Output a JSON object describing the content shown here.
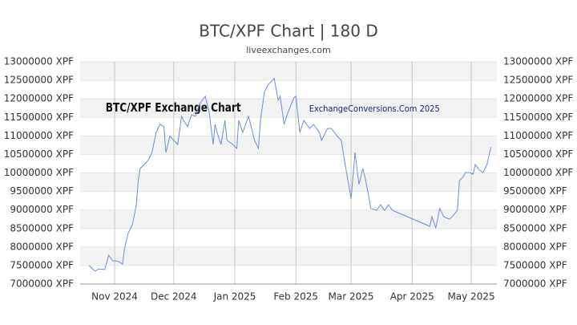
{
  "chart_data": {
    "type": "line",
    "title": "BTC/XPF Chart | 180 D",
    "subtitle": "liveexchanges.com",
    "annotations": [
      "BTC/XPF Exchange Chart",
      "ExchangeConversions.Com 2025"
    ],
    "x": [
      -13,
      -10,
      -8,
      -5,
      -3,
      -1,
      2,
      4,
      5,
      7,
      9,
      11,
      12,
      13,
      15,
      17,
      19,
      21,
      23,
      25,
      26,
      28,
      30,
      32,
      34,
      35,
      37,
      39,
      41,
      43,
      46,
      48,
      50,
      51,
      52,
      54,
      56,
      57,
      60,
      62,
      63,
      65,
      68,
      71,
      73,
      74,
      76,
      78,
      81,
      83,
      84,
      86,
      88,
      91,
      92,
      94,
      96,
      99,
      101,
      104,
      105,
      108,
      110,
      113,
      115,
      117,
      120,
      121,
      122,
      124,
      126,
      127,
      129,
      130,
      133,
      135,
      137,
      139,
      141,
      160,
      161,
      163,
      165,
      166,
      167,
      170,
      172,
      174,
      175,
      177,
      178,
      180,
      182,
      183,
      185,
      187,
      189,
      191
    ],
    "series": [
      {
        "name": "BTC/XPF",
        "color": "#6a8fd8",
        "values": [
          7500000,
          7350000,
          7410000,
          7390000,
          7780000,
          7630000,
          7610000,
          7540000,
          7950000,
          8390000,
          8600000,
          9140000,
          9790000,
          10120000,
          10230000,
          10340000,
          10550000,
          11090000,
          11310000,
          11250000,
          10550000,
          10990000,
          10880000,
          10770000,
          11530000,
          11420000,
          11250000,
          11570000,
          11530000,
          11850000,
          12070000,
          11640000,
          10770000,
          11310000,
          11090000,
          10770000,
          11420000,
          10880000,
          10770000,
          10660000,
          11420000,
          11090000,
          11530000,
          10880000,
          10660000,
          11420000,
          12180000,
          12390000,
          12550000,
          11960000,
          12070000,
          11310000,
          11640000,
          12030000,
          12070000,
          11090000,
          11420000,
          11200000,
          11310000,
          11090000,
          10880000,
          11200000,
          11200000,
          10990000,
          10880000,
          10230000,
          9300000,
          9900000,
          10550000,
          9690000,
          10120000,
          9900000,
          9360000,
          9040000,
          8990000,
          9140000,
          8990000,
          9140000,
          8990000,
          8560000,
          8820000,
          8520000,
          9040000,
          8930000,
          8820000,
          8750000,
          8860000,
          8990000,
          9790000,
          9900000,
          10010000,
          10010000,
          9970000,
          10230000,
          10080000,
          10010000,
          10230000,
          10700000
        ]
      }
    ],
    "xlim": [
      -17.5,
      194
    ],
    "xticks": [
      {
        "value": 0,
        "label": "Nov 2024"
      },
      {
        "value": 30,
        "label": "Dec 2024"
      },
      {
        "value": 61,
        "label": "Jan 2025"
      },
      {
        "value": 92,
        "label": "Feb 2025"
      },
      {
        "value": 120,
        "label": "Mar 2025"
      },
      {
        "value": 151,
        "label": "Apr 2025"
      },
      {
        "value": 181,
        "label": "May 2025"
      }
    ],
    "ylim": [
      7000000,
      13000000
    ],
    "yticks": [
      {
        "value": 7000000,
        "label": "7000000 XPF"
      },
      {
        "value": 7500000,
        "label": "7500000 XPF"
      },
      {
        "value": 8000000,
        "label": "8000000 XPF"
      },
      {
        "value": 8500000,
        "label": "8500000 XPF"
      },
      {
        "value": 9000000,
        "label": "9000000 XPF"
      },
      {
        "value": 9500000,
        "label": "9500000 XPF"
      },
      {
        "value": 10000000,
        "label": "10000000 XPF"
      },
      {
        "value": 10500000,
        "label": "10500000 XPF"
      },
      {
        "value": 11000000,
        "label": "11000000 XPF"
      },
      {
        "value": 11500000,
        "label": "11500000 XPF"
      },
      {
        "value": 12000000,
        "label": "12000000 XPF"
      },
      {
        "value": 12500000,
        "label": "12500000 XPF"
      },
      {
        "value": 13000000,
        "label": "13000000 XPF"
      }
    ],
    "grid": true
  }
}
